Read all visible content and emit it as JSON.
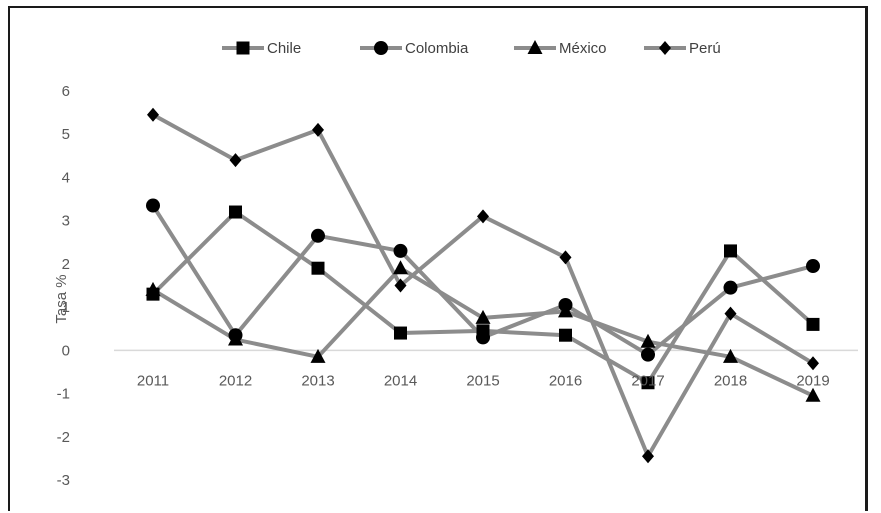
{
  "chart_data": {
    "type": "line",
    "title": "",
    "xlabel": "",
    "ylabel": "Tasa %",
    "ylim": [
      -3,
      6
    ],
    "yticks": [
      -3,
      -2,
      -1,
      0,
      1,
      2,
      3,
      4,
      5,
      6
    ],
    "grid": false,
    "legend_position": "top",
    "categories": [
      "2011",
      "2012",
      "2013",
      "2014",
      "2015",
      "2016",
      "2017",
      "2018",
      "2019"
    ],
    "series": [
      {
        "name": "Chile",
        "marker": "square",
        "values": [
          1.3,
          3.2,
          1.9,
          0.4,
          0.45,
          0.35,
          -0.75,
          2.3,
          0.6
        ]
      },
      {
        "name": "Colombia",
        "marker": "circle",
        "values": [
          3.35,
          0.35,
          2.65,
          2.3,
          0.3,
          1.05,
          -0.1,
          1.45,
          1.95
        ]
      },
      {
        "name": "México",
        "marker": "triangle",
        "values": [
          1.4,
          0.25,
          -0.15,
          1.9,
          0.75,
          0.9,
          0.2,
          -0.15,
          -1.05
        ]
      },
      {
        "name": "Perú",
        "marker": "diamond",
        "values": [
          5.45,
          4.4,
          5.1,
          1.5,
          3.1,
          2.15,
          -2.45,
          0.85,
          -0.3
        ]
      }
    ]
  },
  "colors": {
    "line": "#8c8c8c",
    "marker": "#000000",
    "axis": "#d9d9d9"
  }
}
